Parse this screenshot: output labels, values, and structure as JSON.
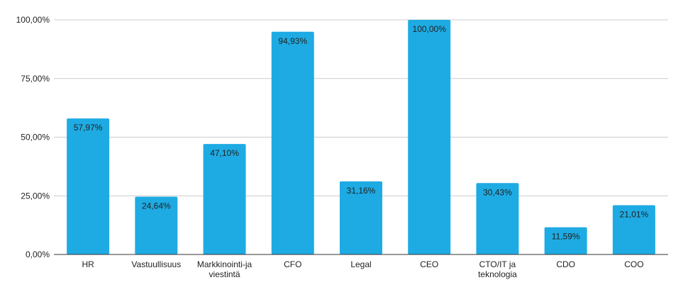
{
  "chart_data": {
    "type": "bar",
    "title": "",
    "xlabel": "",
    "ylabel": "",
    "categories": [
      "HR",
      "Vastuullisuus",
      "Markkinointi-ja viestintä",
      "CFO",
      "Legal",
      "CEO",
      "CTO/IT ja teknologia",
      "CDO",
      "COO"
    ],
    "category_lines": [
      [
        "HR"
      ],
      [
        "Vastuullisuus"
      ],
      [
        "Markkinointi-ja",
        "viestintä"
      ],
      [
        "CFO"
      ],
      [
        "Legal"
      ],
      [
        "CEO"
      ],
      [
        "CTO/IT ja",
        "teknologia"
      ],
      [
        "CDO"
      ],
      [
        "COO"
      ]
    ],
    "values": [
      57.97,
      24.64,
      47.1,
      94.93,
      31.16,
      100.0,
      30.43,
      11.59,
      21.01
    ],
    "data_labels": [
      "57,97%",
      "24,64%",
      "47,10%",
      "94,93%",
      "31,16%",
      "100,00%",
      "30,43%",
      "11,59%",
      "21,01%"
    ],
    "ylim": [
      0,
      100
    ],
    "yticks": [
      0,
      25,
      50,
      75,
      100
    ],
    "ytick_labels": [
      "0,00%",
      "25,00%",
      "50,00%",
      "75,00%",
      "100,00%"
    ],
    "grid": true,
    "legend": "none",
    "bar_color": "#1eabe3",
    "grid_color": "#cccccc",
    "axis_color": "#333333",
    "text_color": "#222222"
  }
}
